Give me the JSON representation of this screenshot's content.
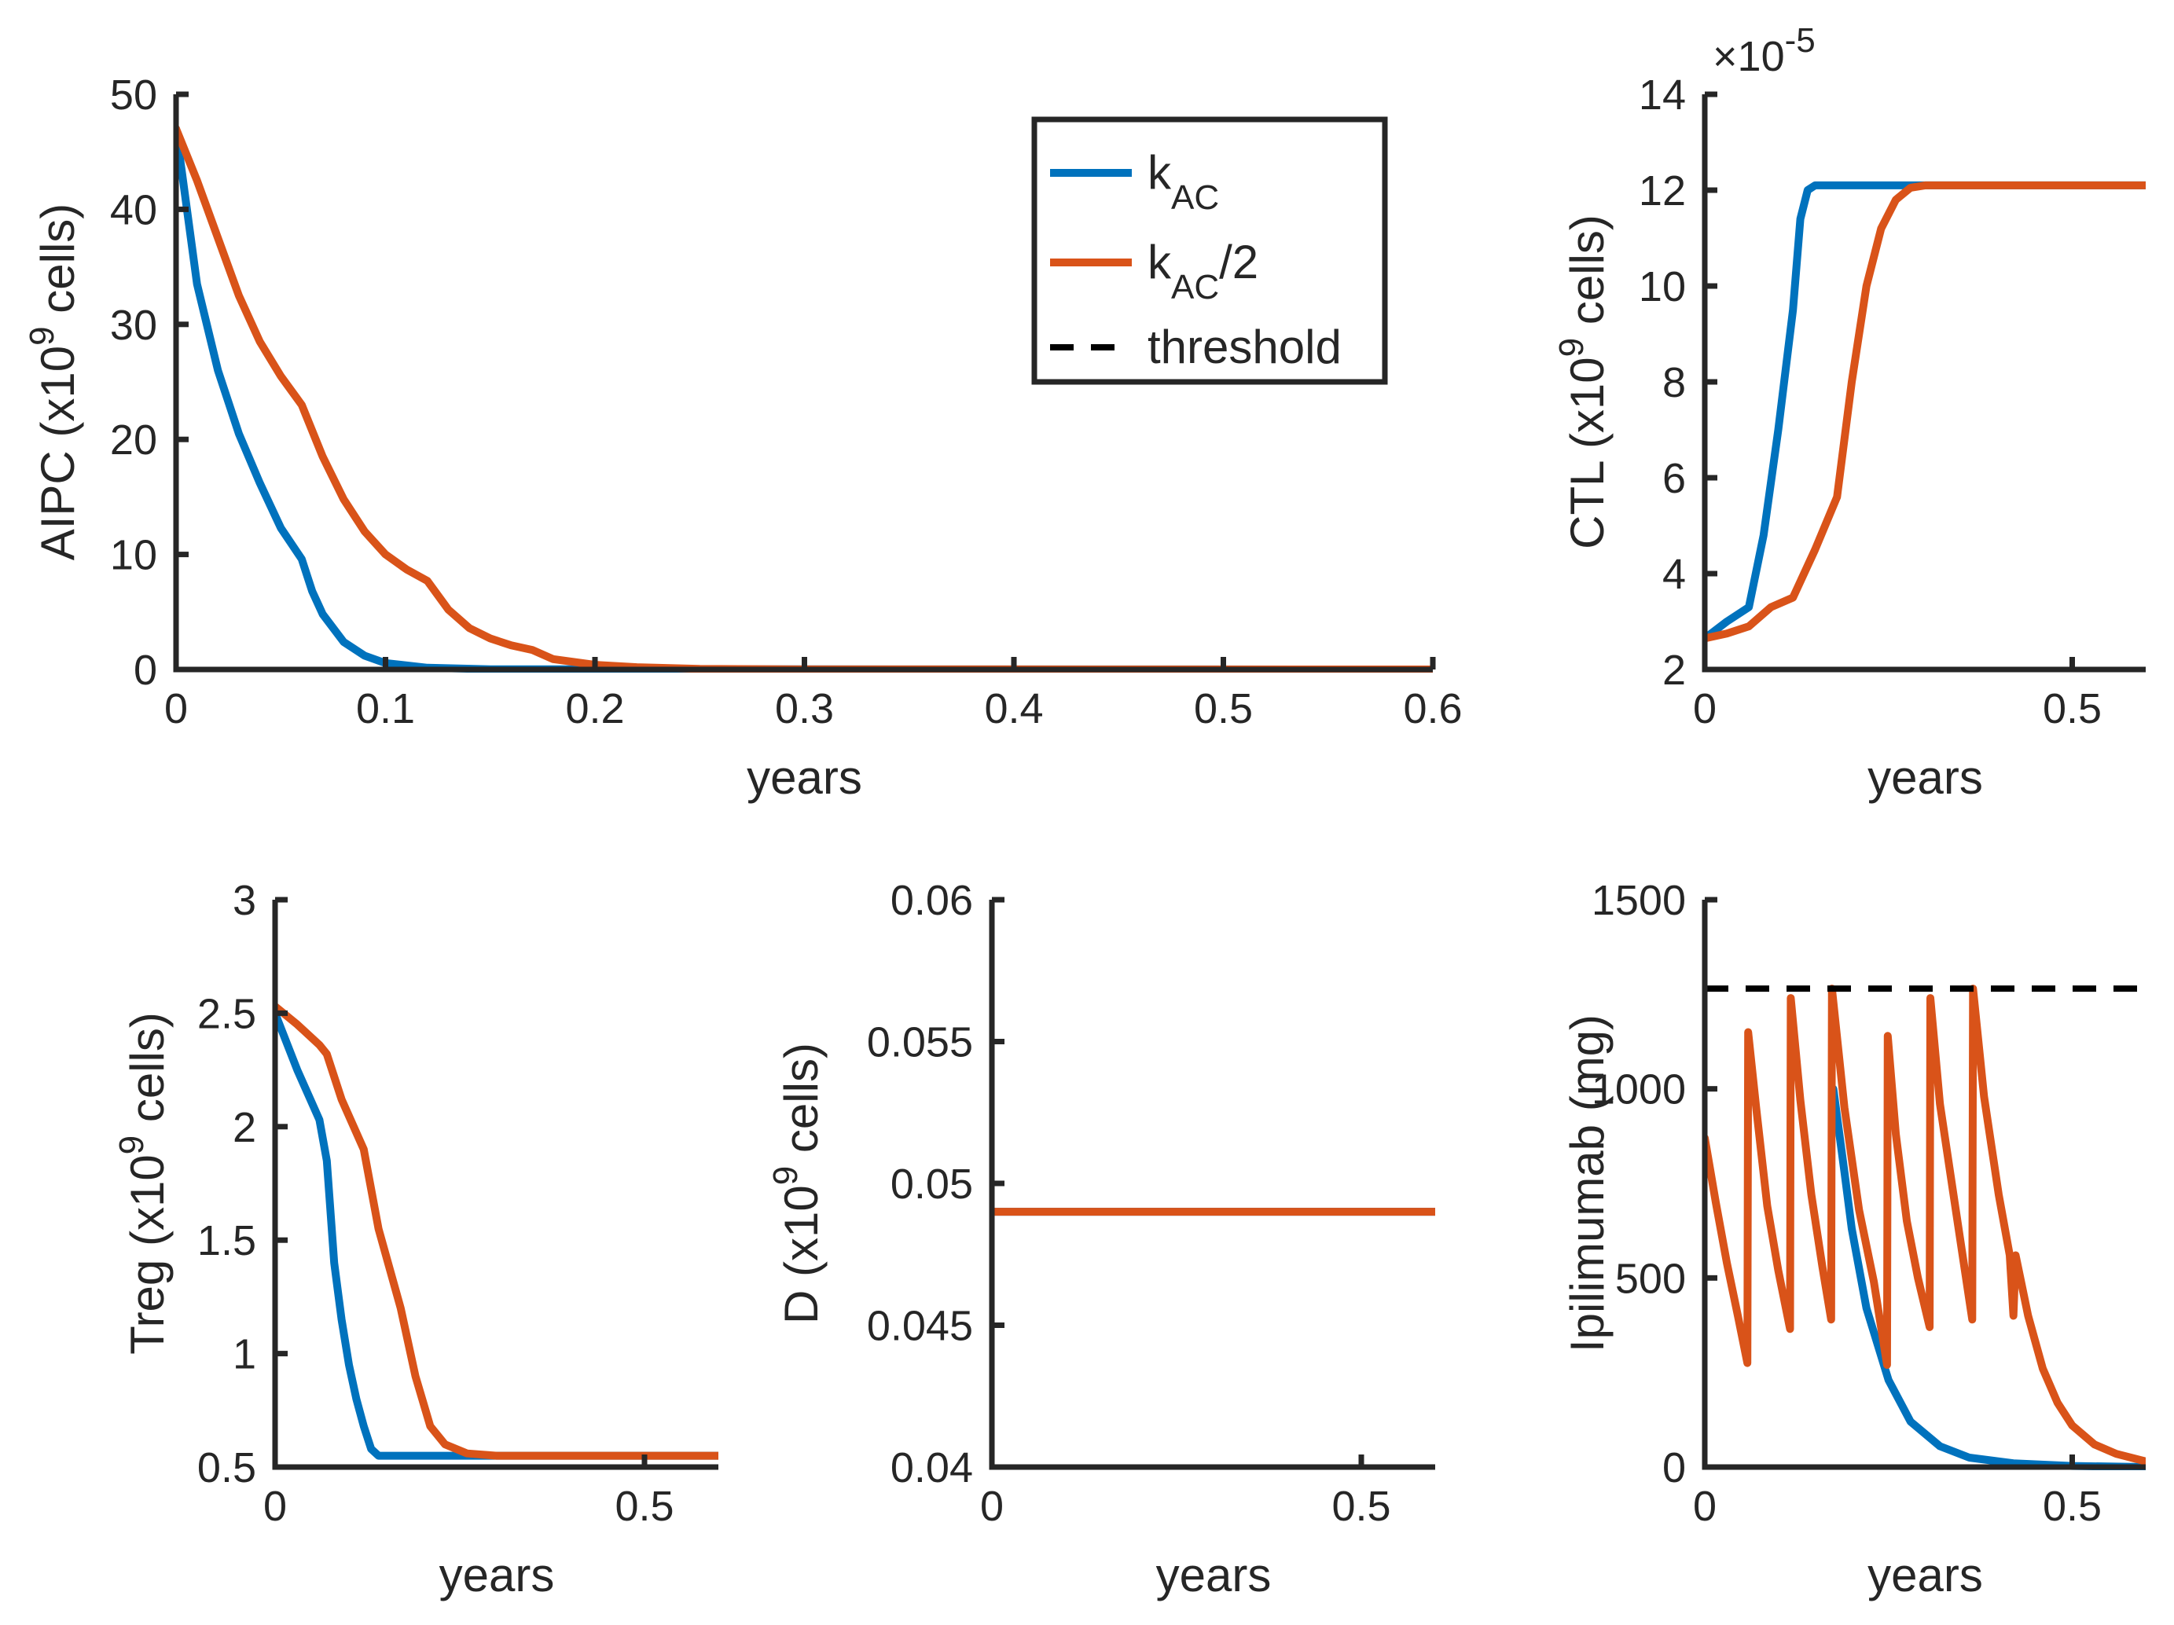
{
  "chart_data": [
    {
      "id": "aipc",
      "type": "line",
      "xlabel": "years",
      "ylabel": "AIPC (x10^9 cells)",
      "xlim": [
        0,
        0.6
      ],
      "ylim": [
        0,
        50
      ],
      "xticks": [
        0,
        0.1,
        0.2,
        0.3,
        0.4,
        0.5,
        0.6
      ],
      "xtick_labels": [
        "0",
        "0.1",
        "0.2",
        "0.3",
        "0.4",
        "0.5",
        "0.6"
      ],
      "yticks": [
        0,
        10,
        20,
        30,
        40,
        50
      ],
      "ytick_labels": [
        "0",
        "10",
        "20",
        "30",
        "40",
        "50"
      ],
      "series": [
        {
          "name": "k_AC",
          "color": "#0072BD",
          "points": [
            [
              0,
              47
            ],
            [
              0.01,
              33.5
            ],
            [
              0.02,
              26
            ],
            [
              0.03,
              20.5
            ],
            [
              0.04,
              16.2
            ],
            [
              0.05,
              12.3
            ],
            [
              0.06,
              9.6
            ],
            [
              0.065,
              6.8
            ],
            [
              0.07,
              4.8
            ],
            [
              0.08,
              2.4
            ],
            [
              0.09,
              1.2
            ],
            [
              0.1,
              0.55
            ],
            [
              0.12,
              0.15
            ],
            [
              0.15,
              0.02
            ],
            [
              0.6,
              0
            ]
          ]
        },
        {
          "name": "k_AC/2",
          "color": "#D95319",
          "points": [
            [
              0,
              47
            ],
            [
              0.01,
              42.5
            ],
            [
              0.02,
              37.5
            ],
            [
              0.03,
              32.5
            ],
            [
              0.04,
              28.5
            ],
            [
              0.05,
              25.5
            ],
            [
              0.06,
              23
            ],
            [
              0.07,
              18.5
            ],
            [
              0.08,
              14.8
            ],
            [
              0.09,
              12
            ],
            [
              0.1,
              10
            ],
            [
              0.11,
              8.7
            ],
            [
              0.12,
              7.7
            ],
            [
              0.13,
              5.2
            ],
            [
              0.14,
              3.6
            ],
            [
              0.15,
              2.7
            ],
            [
              0.16,
              2.1
            ],
            [
              0.17,
              1.7
            ],
            [
              0.18,
              0.9
            ],
            [
              0.2,
              0.4
            ],
            [
              0.22,
              0.2
            ],
            [
              0.25,
              0.05
            ],
            [
              0.3,
              0.01
            ],
            [
              0.6,
              0
            ]
          ]
        }
      ]
    },
    {
      "id": "ctl",
      "type": "line",
      "xlabel": "years",
      "ylabel": "CTL (x10^9 cells)",
      "exponent": "×10^-5",
      "xlim": [
        0,
        0.6
      ],
      "ylim": [
        2,
        14
      ],
      "xticks": [
        0,
        0.5
      ],
      "xtick_labels": [
        "0",
        "0.5"
      ],
      "yticks": [
        2,
        4,
        6,
        8,
        10,
        12,
        14
      ],
      "ytick_labels": [
        "2",
        "4",
        "6",
        "8",
        "10",
        "12",
        "14"
      ],
      "series": [
        {
          "name": "k_AC",
          "color": "#0072BD",
          "points": [
            [
              0,
              2.65
            ],
            [
              0.03,
              3
            ],
            [
              0.06,
              3.3
            ],
            [
              0.08,
              4.8
            ],
            [
              0.1,
              7
            ],
            [
              0.12,
              9.5
            ],
            [
              0.13,
              11.4
            ],
            [
              0.14,
              12
            ],
            [
              0.15,
              12.1
            ],
            [
              0.6,
              12.1
            ]
          ]
        },
        {
          "name": "k_AC/2",
          "color": "#D95319",
          "points": [
            [
              0,
              2.65
            ],
            [
              0.03,
              2.75
            ],
            [
              0.06,
              2.9
            ],
            [
              0.09,
              3.3
            ],
            [
              0.12,
              3.5
            ],
            [
              0.15,
              4.5
            ],
            [
              0.18,
              5.6
            ],
            [
              0.2,
              8
            ],
            [
              0.22,
              10
            ],
            [
              0.24,
              11.2
            ],
            [
              0.26,
              11.8
            ],
            [
              0.28,
              12.05
            ],
            [
              0.3,
              12.1
            ],
            [
              0.6,
              12.1
            ]
          ]
        }
      ]
    },
    {
      "id": "treg",
      "type": "line",
      "xlabel": "years",
      "ylabel": "Treg (x10^9 cells)",
      "xlim": [
        0,
        0.6
      ],
      "ylim": [
        0.5,
        3
      ],
      "xticks": [
        0,
        0.5
      ],
      "xtick_labels": [
        "0",
        "0.5"
      ],
      "yticks": [
        0.5,
        1,
        1.5,
        2,
        2.5,
        3
      ],
      "ytick_labels": [
        "0.5",
        "1",
        "1.5",
        "2",
        "2.5",
        "3"
      ],
      "series": [
        {
          "name": "k_AC",
          "color": "#0072BD",
          "points": [
            [
              0,
              2.5
            ],
            [
              0.03,
              2.25
            ],
            [
              0.06,
              2.03
            ],
            [
              0.07,
              1.85
            ],
            [
              0.08,
              1.4
            ],
            [
              0.09,
              1.15
            ],
            [
              0.1,
              0.95
            ],
            [
              0.11,
              0.8
            ],
            [
              0.12,
              0.68
            ],
            [
              0.13,
              0.58
            ],
            [
              0.14,
              0.55
            ],
            [
              0.6,
              0.55
            ]
          ]
        },
        {
          "name": "k_AC/2",
          "color": "#D95319",
          "points": [
            [
              0,
              2.53
            ],
            [
              0.03,
              2.45
            ],
            [
              0.06,
              2.36
            ],
            [
              0.07,
              2.32
            ],
            [
              0.09,
              2.12
            ],
            [
              0.12,
              1.9
            ],
            [
              0.14,
              1.55
            ],
            [
              0.17,
              1.2
            ],
            [
              0.19,
              0.9
            ],
            [
              0.21,
              0.68
            ],
            [
              0.23,
              0.6
            ],
            [
              0.26,
              0.56
            ],
            [
              0.3,
              0.55
            ],
            [
              0.6,
              0.55
            ]
          ]
        }
      ]
    },
    {
      "id": "d",
      "type": "line",
      "xlabel": "years",
      "ylabel": "D (x10^9 cells)",
      "xlim": [
        0,
        0.6
      ],
      "ylim": [
        0.04,
        0.06
      ],
      "xticks": [
        0,
        0.5
      ],
      "xtick_labels": [
        "0",
        "0.5"
      ],
      "yticks": [
        0.04,
        0.045,
        0.05,
        0.055,
        0.06
      ],
      "ytick_labels": [
        "0.04",
        "0.045",
        "0.05",
        "0.055",
        "0.06"
      ],
      "series": [
        {
          "name": "k_AC",
          "color": "#0072BD",
          "points": [
            [
              0,
              0.049
            ],
            [
              0.6,
              0.049
            ]
          ]
        },
        {
          "name": "k_AC/2",
          "color": "#D95319",
          "points": [
            [
              0,
              0.049
            ],
            [
              0.6,
              0.049
            ]
          ]
        }
      ]
    },
    {
      "id": "ipi",
      "type": "line",
      "xlabel": "years",
      "ylabel": "Ipilimumab (mg)",
      "xlim": [
        0,
        0.6
      ],
      "ylim": [
        0,
        1500
      ],
      "xticks": [
        0,
        0.5
      ],
      "xtick_labels": [
        "0",
        "0.5"
      ],
      "yticks": [
        0,
        500,
        1000,
        1500
      ],
      "ytick_labels": [
        "0",
        "500",
        "1000",
        "1500"
      ],
      "threshold": 1265,
      "series": [
        {
          "name": "k_AC",
          "color": "#0072BD",
          "points": [
            [
              0.175,
              1000
            ],
            [
              0.19,
              780
            ],
            [
              0.2,
              630
            ],
            [
              0.22,
              420
            ],
            [
              0.25,
              230
            ],
            [
              0.28,
              120
            ],
            [
              0.32,
              55
            ],
            [
              0.36,
              25
            ],
            [
              0.42,
              10
            ],
            [
              0.5,
              3
            ],
            [
              0.6,
              0
            ]
          ]
        },
        {
          "name": "k_AC/2",
          "color": "#D95319",
          "points": [
            [
              0,
              870
            ],
            [
              0.015,
              700
            ],
            [
              0.03,
              540
            ],
            [
              0.045,
              400
            ],
            [
              0.058,
              275
            ],
            [
              0.059,
              1150
            ],
            [
              0.07,
              950
            ],
            [
              0.085,
              690
            ],
            [
              0.1,
              520
            ],
            [
              0.116,
              365
            ],
            [
              0.117,
              1240
            ],
            [
              0.13,
              970
            ],
            [
              0.145,
              720
            ],
            [
              0.16,
              530
            ],
            [
              0.172,
              390
            ],
            [
              0.173,
              1265
            ],
            [
              0.19,
              950
            ],
            [
              0.21,
              680
            ],
            [
              0.23,
              490
            ],
            [
              0.248,
              270
            ],
            [
              0.249,
              1140
            ],
            [
              0.26,
              880
            ],
            [
              0.275,
              650
            ],
            [
              0.29,
              500
            ],
            [
              0.306,
              370
            ],
            [
              0.307,
              1240
            ],
            [
              0.32,
              960
            ],
            [
              0.34,
              700
            ],
            [
              0.364,
              390
            ],
            [
              0.365,
              1265
            ],
            [
              0.38,
              980
            ],
            [
              0.4,
              720
            ],
            [
              0.415,
              560
            ],
            [
              0.42,
              400
            ],
            [
              0.423,
              560
            ],
            [
              0.44,
              400
            ],
            [
              0.46,
              260
            ],
            [
              0.48,
              170
            ],
            [
              0.5,
              110
            ],
            [
              0.53,
              60
            ],
            [
              0.56,
              35
            ],
            [
              0.6,
              15
            ]
          ]
        }
      ]
    }
  ],
  "legend": {
    "items": [
      {
        "label": "k",
        "sub": "AC",
        "suffix": "",
        "color": "#0072BD",
        "style": "solid"
      },
      {
        "label": "k",
        "sub": "AC",
        "suffix": "/2",
        "color": "#D95319",
        "style": "solid"
      },
      {
        "label": "threshold",
        "sub": "",
        "suffix": "",
        "color": "#000000",
        "style": "dashed"
      }
    ]
  }
}
